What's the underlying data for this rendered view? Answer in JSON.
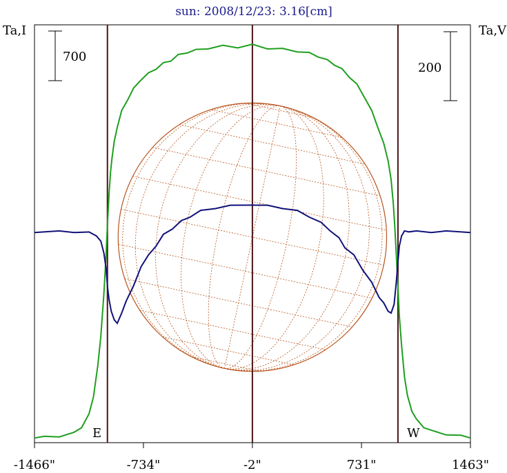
{
  "chart_data": {
    "type": "line",
    "title": "sun: 2008/12/23: 3.16[cm]",
    "ylabel_left": "Ta,I",
    "ylabel_right": "Ta,V",
    "scale_left": "700",
    "scale_right": "200",
    "marker_east": "E",
    "marker_west": "W",
    "x_ticks": [
      {
        "value": -1466,
        "label": "-1466\""
      },
      {
        "value": -734,
        "label": "-734\""
      },
      {
        "value": -2,
        "label": "-2\""
      },
      {
        "value": 731,
        "label": "731\""
      },
      {
        "value": 1463,
        "label": "1463\""
      }
    ],
    "xlim": [
      -1466,
      1463
    ],
    "vertical_lines": [
      -976,
      -2,
      976
    ],
    "sun_disk": {
      "center_x": -2,
      "radius_arcsec": 902
    },
    "series": [
      {
        "name": "Ta,I",
        "color": "#1e9e1e",
        "ylim": [
          0,
          3900
        ],
        "x": [
          -1466,
          -1400,
          -1300,
          -1200,
          -1150,
          -1100,
          -1070,
          -1040,
          -1020,
          -1000,
          -985,
          -975,
          -965,
          -955,
          -945,
          -930,
          -910,
          -880,
          -840,
          -800,
          -760,
          -700,
          -650,
          -600,
          -550,
          -500,
          -440,
          -380,
          -300,
          -200,
          -100,
          -2,
          100,
          200,
          300,
          380,
          440,
          500,
          550,
          600,
          650,
          700,
          760,
          800,
          840,
          880,
          910,
          930,
          945,
          955,
          965,
          975,
          985,
          1000,
          1020,
          1040,
          1070,
          1100,
          1150,
          1200,
          1300,
          1400,
          1463
        ],
        "y": [
          0,
          0,
          10,
          40,
          100,
          220,
          400,
          700,
          1000,
          1400,
          1800,
          2100,
          2400,
          2600,
          2750,
          2900,
          3050,
          3200,
          3320,
          3420,
          3500,
          3570,
          3620,
          3670,
          3700,
          3750,
          3780,
          3800,
          3820,
          3840,
          3830,
          3850,
          3820,
          3810,
          3790,
          3770,
          3740,
          3700,
          3660,
          3610,
          3540,
          3460,
          3320,
          3200,
          3050,
          2880,
          2720,
          2520,
          2300,
          2050,
          1800,
          1500,
          1200,
          900,
          600,
          400,
          260,
          170,
          100,
          60,
          30,
          10,
          0
        ]
      },
      {
        "name": "Ta,V",
        "color": "#10107a",
        "ylim": [
          -600,
          560
        ],
        "x": [
          -1466,
          -1300,
          -1200,
          -1100,
          -1050,
          -1020,
          -1000,
          -985,
          -975,
          -965,
          -950,
          -930,
          -910,
          -880,
          -850,
          -800,
          -750,
          -700,
          -650,
          -600,
          -540,
          -480,
          -420,
          -350,
          -250,
          -150,
          -2,
          100,
          200,
          300,
          380,
          460,
          520,
          580,
          620,
          680,
          740,
          800,
          850,
          880,
          910,
          930,
          950,
          965,
          975,
          985,
          1000,
          1020,
          1050,
          1100,
          1200,
          1300,
          1463
        ],
        "y": [
          0,
          0,
          0,
          -3,
          -10,
          -30,
          -60,
          -110,
          -160,
          -200,
          -230,
          -260,
          -265,
          -240,
          -200,
          -160,
          -100,
          -70,
          -40,
          -10,
          10,
          30,
          45,
          60,
          70,
          75,
          80,
          75,
          70,
          60,
          45,
          25,
          5,
          -20,
          -45,
          -70,
          -110,
          -150,
          -190,
          -210,
          -230,
          -240,
          -210,
          -150,
          -90,
          -45,
          -10,
          0,
          2,
          0,
          0,
          0,
          0
        ]
      }
    ]
  }
}
